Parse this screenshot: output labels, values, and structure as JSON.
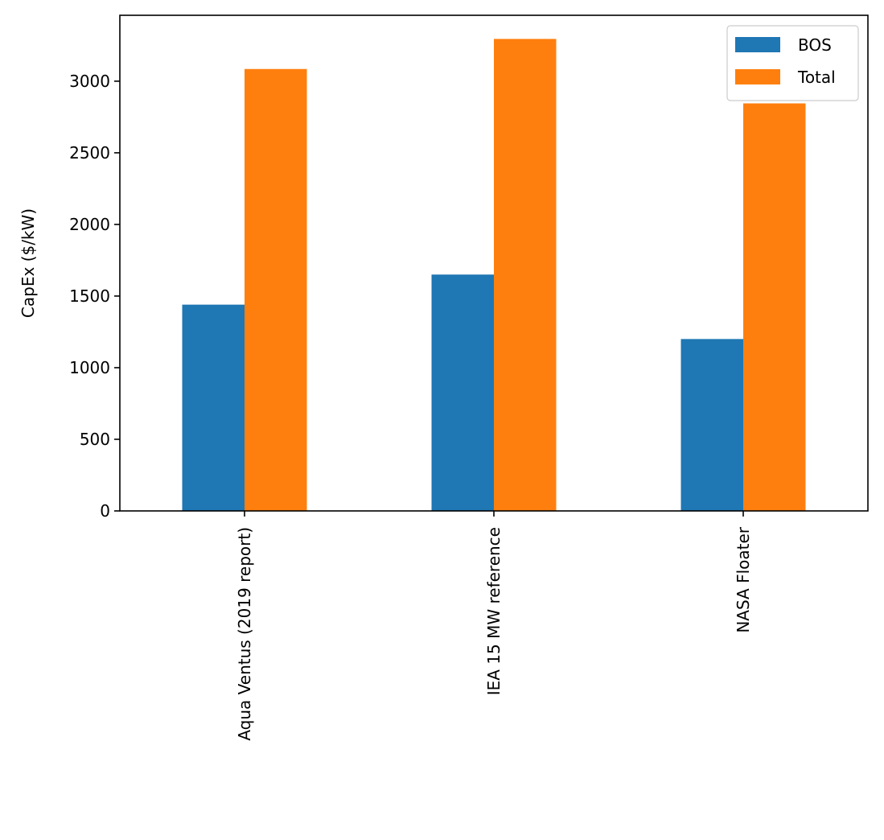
{
  "chart_data": {
    "type": "bar",
    "title": "",
    "xlabel": "",
    "ylabel": "CapEx ($/kW)",
    "categories": [
      "Aqua Ventus (2019 report)",
      "IEA 15 MW reference",
      "NASA Floater"
    ],
    "series": [
      {
        "name": "BOS",
        "color": "#1f77b4",
        "values": [
          1440,
          1650,
          1200
        ]
      },
      {
        "name": "Total",
        "color": "#ff7f0e",
        "values": [
          3085,
          3295,
          2845
        ]
      }
    ],
    "ylim": [
      0,
      3460
    ],
    "yticks": [
      0,
      500,
      1000,
      1500,
      2000,
      2500,
      3000
    ],
    "grid": false,
    "legend": {
      "placement": "top-right"
    }
  }
}
